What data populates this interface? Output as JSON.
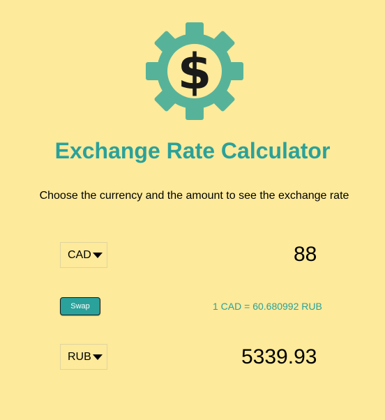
{
  "logo": {
    "icon": "dollar-gear-icon",
    "colors": {
      "gear": "#56b39a",
      "center": "#fdea9a",
      "symbol": "#1a1a1a"
    }
  },
  "title": "Exchange Rate Calculator",
  "subtitle": "Choose the currency and the amount to see the exchange rate",
  "from": {
    "currency": "CAD",
    "amount": "88"
  },
  "swap_label": "Swap",
  "rate_text": "1 CAD = 60.680992 RUB",
  "to": {
    "currency": "RUB",
    "amount": "5339.93"
  },
  "colors": {
    "background": "#fdea9a",
    "accent": "#2aa19a"
  }
}
